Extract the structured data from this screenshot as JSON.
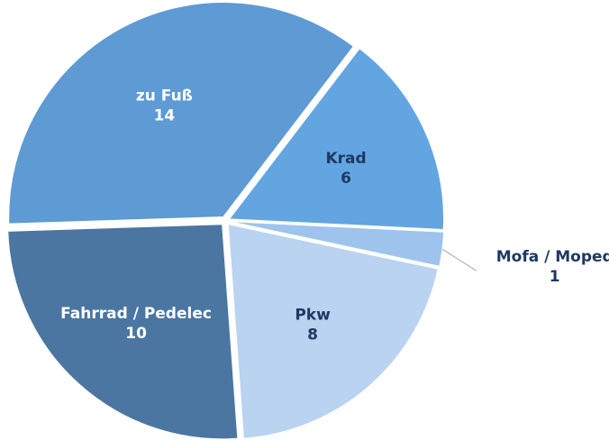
{
  "chart_data": {
    "type": "pie",
    "categories": [
      "Krad",
      "Mofa / Moped",
      "Pkw",
      "Fahrrad / Pedelec",
      "zu Fuß"
    ],
    "values": [
      6,
      1,
      8,
      10,
      14
    ],
    "colors": [
      "#62a5e1",
      "#9ec4ee",
      "#b9d3f1",
      "#4a76a1",
      "#5e9ad3"
    ],
    "label_colors": [
      "#1f3864",
      "#1f3864",
      "#1f3864",
      "#ffffff",
      "#ffffff"
    ]
  }
}
